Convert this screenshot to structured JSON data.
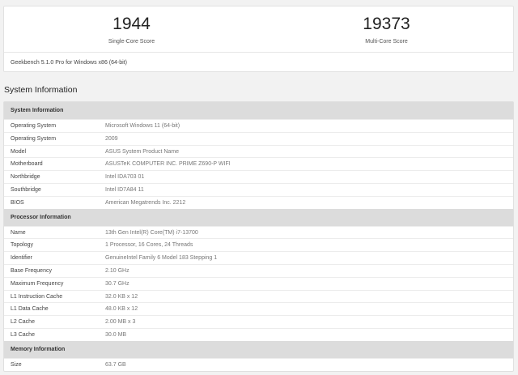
{
  "scores": {
    "single": {
      "value": "1944",
      "label": "Single-Core Score"
    },
    "multi": {
      "value": "19373",
      "label": "Multi-Core Score"
    }
  },
  "version": "Geekbench 5.1.0 Pro for Windows x86 (64-bit)",
  "heading": "System Information",
  "sections": [
    {
      "title": "System Information",
      "rows": [
        {
          "k": "Operating System",
          "v": "Microsoft Windows 11 (64-bit)"
        },
        {
          "k": "Operating System",
          "v": "2009"
        },
        {
          "k": "Model",
          "v": "ASUS System Product Name"
        },
        {
          "k": "Motherboard",
          "v": "ASUSTeK COMPUTER INC. PRIME Z690-P WIFI"
        },
        {
          "k": "Northbridge",
          "v": "Intel IDA703 01"
        },
        {
          "k": "Southbridge",
          "v": "Intel ID7A84 11"
        },
        {
          "k": "BIOS",
          "v": "American Megatrends Inc. 2212"
        }
      ]
    },
    {
      "title": "Processor Information",
      "rows": [
        {
          "k": "Name",
          "v": "13th Gen Intel(R) Core(TM) i7-13700"
        },
        {
          "k": "Topology",
          "v": "1 Processor, 16 Cores, 24 Threads"
        },
        {
          "k": "Identifier",
          "v": "GenuineIntel Family 6 Model 183 Stepping 1"
        },
        {
          "k": "Base Frequency",
          "v": "2.10 GHz"
        },
        {
          "k": "Maximum Frequency",
          "v": "30.7 GHz"
        },
        {
          "k": "L1 Instruction Cache",
          "v": "32.0 KB x 12"
        },
        {
          "k": "L1 Data Cache",
          "v": "48.0 KB x 12"
        },
        {
          "k": "L2 Cache",
          "v": "2.00 MB x 3"
        },
        {
          "k": "L3 Cache",
          "v": "30.0 MB"
        }
      ]
    },
    {
      "title": "Memory Information",
      "rows": [
        {
          "k": "Size",
          "v": "63.7 GB"
        }
      ]
    }
  ]
}
